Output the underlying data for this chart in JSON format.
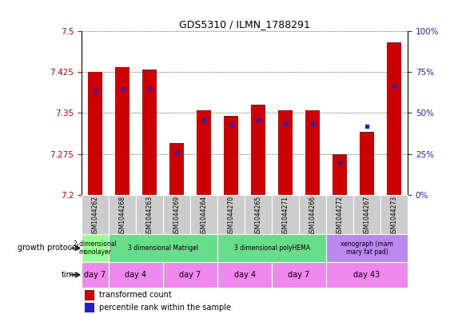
{
  "title": "GDS5310 / ILMN_1788291",
  "samples": [
    "GSM1044262",
    "GSM1044268",
    "GSM1044263",
    "GSM1044269",
    "GSM1044264",
    "GSM1044270",
    "GSM1044265",
    "GSM1044271",
    "GSM1044266",
    "GSM1044272",
    "GSM1044267",
    "GSM1044273"
  ],
  "transformed_counts": [
    7.425,
    7.435,
    7.43,
    7.295,
    7.355,
    7.345,
    7.365,
    7.355,
    7.355,
    7.275,
    7.315,
    7.48
  ],
  "percentile_ranks": [
    64,
    65,
    65,
    26,
    46,
    43,
    46,
    44,
    44,
    20,
    42,
    67
  ],
  "y_min": 7.2,
  "y_max": 7.5,
  "y_ticks": [
    7.2,
    7.275,
    7.35,
    7.425,
    7.5
  ],
  "right_y_ticks": [
    0,
    25,
    50,
    75,
    100
  ],
  "bar_color": "#cc0000",
  "blue_color": "#2222cc",
  "sample_label_bg": "#cccccc",
  "growth_protocol_groups": [
    {
      "label": "2 dimensional\nmonolayer",
      "start": 0,
      "end": 1,
      "color": "#99ff99"
    },
    {
      "label": "3 dimensional Matrigel",
      "start": 1,
      "end": 5,
      "color": "#66dd88"
    },
    {
      "label": "3 dimensional polyHEMA",
      "start": 5,
      "end": 9,
      "color": "#66dd88"
    },
    {
      "label": "xenograph (mam\nmary fat pad)",
      "start": 9,
      "end": 12,
      "color": "#bb88ee"
    }
  ],
  "time_groups": [
    {
      "label": "day 7",
      "start": 0,
      "end": 1,
      "color": "#ee88ee"
    },
    {
      "label": "day 4",
      "start": 1,
      "end": 3,
      "color": "#ee88ee"
    },
    {
      "label": "day 7",
      "start": 3,
      "end": 5,
      "color": "#ee88ee"
    },
    {
      "label": "day 4",
      "start": 5,
      "end": 7,
      "color": "#ee88ee"
    },
    {
      "label": "day 7",
      "start": 7,
      "end": 9,
      "color": "#ee88ee"
    },
    {
      "label": "day 43",
      "start": 9,
      "end": 12,
      "color": "#ee88ee"
    }
  ],
  "legend_items": [
    {
      "label": "transformed count",
      "color": "#cc0000"
    },
    {
      "label": "percentile rank within the sample",
      "color": "#2222cc"
    }
  ],
  "left_labels": [
    {
      "text": "growth protocol",
      "row": 0
    },
    {
      "text": "time",
      "row": 1
    }
  ]
}
